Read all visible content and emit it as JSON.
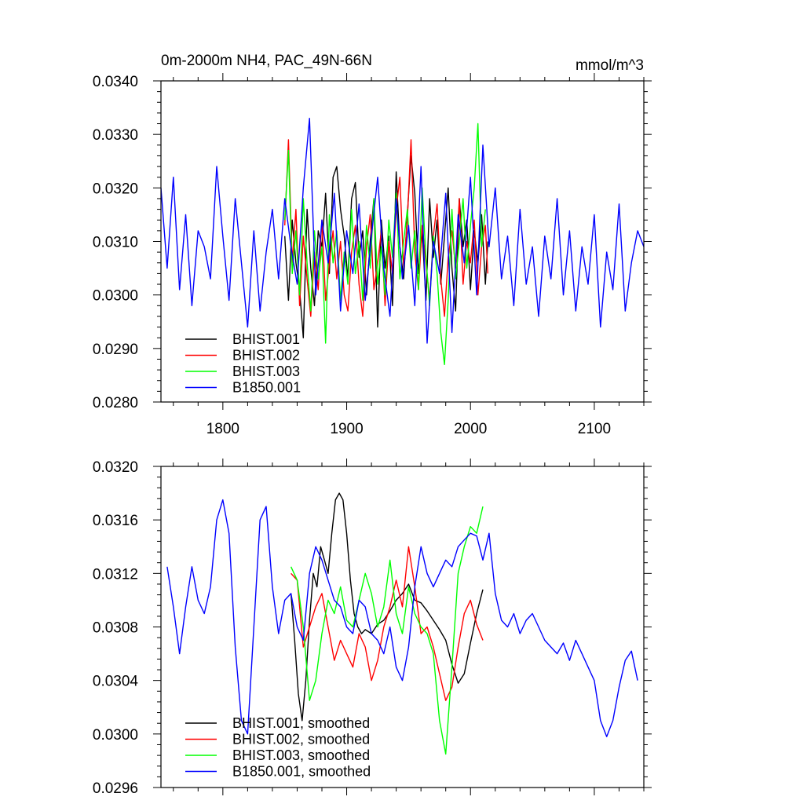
{
  "chart_data": [
    {
      "type": "line",
      "title": "0m-2000m NH4, PAC_49N-66N",
      "units": "mmol/m^3",
      "xlim": [
        1750,
        2140
      ],
      "ylim": [
        0.028,
        0.034
      ],
      "x_ticks": [
        1800,
        1900,
        2000,
        2100
      ],
      "x_tick_labels": [
        "1800",
        "1900",
        "2000",
        "2100"
      ],
      "y_ticks": [
        0.028,
        0.029,
        0.03,
        0.031,
        0.032,
        0.033,
        0.034
      ],
      "y_tick_labels": [
        "0.0280",
        "0.0290",
        "0.0300",
        "0.0310",
        "0.0320",
        "0.0330",
        "0.0340"
      ],
      "legend_position": "bottom-left",
      "series": [
        {
          "name": "BHIST.001",
          "color": "#000000",
          "x": [
            1850,
            1853,
            1856,
            1859,
            1862,
            1865,
            1868,
            1871,
            1874,
            1877,
            1880,
            1883,
            1886,
            1889,
            1892,
            1895,
            1898,
            1901,
            1904,
            1907,
            1910,
            1913,
            1916,
            1919,
            1922,
            1925,
            1928,
            1931,
            1934,
            1937,
            1940,
            1943,
            1946,
            1949,
            1952,
            1955,
            1958,
            1961,
            1964,
            1967,
            1970,
            1973,
            1976,
            1979,
            1982,
            1985,
            1988,
            1991,
            1994,
            1997,
            2000,
            2003,
            2006,
            2009,
            2012,
            2014
          ],
          "y": [
            0.0311,
            0.0299,
            0.0314,
            0.0306,
            0.0301,
            0.0292,
            0.0316,
            0.0305,
            0.0298,
            0.0312,
            0.0309,
            0.0319,
            0.0304,
            0.0322,
            0.0324,
            0.0316,
            0.0311,
            0.0303,
            0.0318,
            0.0321,
            0.0307,
            0.0312,
            0.03,
            0.031,
            0.0318,
            0.0294,
            0.0314,
            0.0305,
            0.0311,
            0.0298,
            0.0323,
            0.0309,
            0.0303,
            0.0315,
            0.0326,
            0.0319,
            0.0304,
            0.0312,
            0.0299,
            0.0318,
            0.0307,
            0.0314,
            0.0302,
            0.0311,
            0.032,
            0.0305,
            0.0297,
            0.0318,
            0.0309,
            0.0314,
            0.0301,
            0.0312,
            0.0306,
            0.0315,
            0.0302,
            0.031
          ]
        },
        {
          "name": "BHIST.002",
          "color": "#ff0000",
          "x": [
            1850,
            1853,
            1856,
            1859,
            1862,
            1865,
            1868,
            1871,
            1874,
            1877,
            1880,
            1883,
            1886,
            1889,
            1892,
            1895,
            1898,
            1901,
            1904,
            1907,
            1910,
            1913,
            1916,
            1919,
            1922,
            1925,
            1928,
            1931,
            1934,
            1937,
            1940,
            1943,
            1946,
            1949,
            1952,
            1955,
            1958,
            1961,
            1964,
            1967,
            1970,
            1973,
            1976,
            1979,
            1982,
            1985,
            1988,
            1991,
            1994,
            1997,
            2000,
            2003,
            2006,
            2009,
            2012,
            2014
          ],
          "y": [
            0.0313,
            0.0329,
            0.0306,
            0.0316,
            0.0298,
            0.0311,
            0.0303,
            0.0296,
            0.0308,
            0.0301,
            0.0314,
            0.0299,
            0.0306,
            0.0312,
            0.0303,
            0.031,
            0.03,
            0.0297,
            0.0308,
            0.0313,
            0.0302,
            0.0296,
            0.0309,
            0.0315,
            0.0301,
            0.0306,
            0.0312,
            0.0298,
            0.031,
            0.0304,
            0.0316,
            0.0322,
            0.0305,
            0.0314,
            0.0329,
            0.0308,
            0.0301,
            0.0313,
            0.0306,
            0.0299,
            0.0311,
            0.0317,
            0.0303,
            0.0296,
            0.0307,
            0.0312,
            0.0305,
            0.0318,
            0.0302,
            0.031,
            0.0306,
            0.0314,
            0.03,
            0.0309,
            0.0313,
            0.0304
          ]
        },
        {
          "name": "BHIST.003",
          "color": "#00ff00",
          "x": [
            1850,
            1853,
            1856,
            1859,
            1862,
            1865,
            1868,
            1871,
            1874,
            1877,
            1880,
            1883,
            1886,
            1889,
            1892,
            1895,
            1898,
            1901,
            1904,
            1907,
            1910,
            1913,
            1916,
            1919,
            1922,
            1925,
            1928,
            1931,
            1934,
            1937,
            1940,
            1943,
            1946,
            1949,
            1952,
            1955,
            1958,
            1961,
            1964,
            1967,
            1970,
            1973,
            1976,
            1979,
            1982,
            1985,
            1988,
            1991,
            1994,
            1997,
            2000,
            2003,
            2006,
            2009,
            2012
          ],
          "y": [
            0.0314,
            0.0327,
            0.0304,
            0.0312,
            0.03,
            0.0318,
            0.0306,
            0.0297,
            0.0312,
            0.0303,
            0.0309,
            0.0291,
            0.0315,
            0.0306,
            0.0312,
            0.0299,
            0.0308,
            0.0302,
            0.0316,
            0.0304,
            0.031,
            0.0299,
            0.0313,
            0.0305,
            0.0318,
            0.0302,
            0.0309,
            0.03,
            0.0314,
            0.0307,
            0.0319,
            0.0303,
            0.031,
            0.0316,
            0.0305,
            0.0312,
            0.0301,
            0.032,
            0.0307,
            0.0298,
            0.0311,
            0.0304,
            0.0293,
            0.0287,
            0.0299,
            0.0316,
            0.0303,
            0.031,
            0.0318,
            0.0305,
            0.0313,
            0.032,
            0.0332,
            0.0309,
            0.0316
          ]
        },
        {
          "name": "B1850.001",
          "color": "#0000ff",
          "x": [
            1750,
            1755,
            1760,
            1765,
            1770,
            1775,
            1780,
            1785,
            1790,
            1795,
            1800,
            1805,
            1810,
            1815,
            1820,
            1825,
            1830,
            1835,
            1840,
            1845,
            1850,
            1855,
            1860,
            1865,
            1870,
            1875,
            1880,
            1885,
            1890,
            1895,
            1900,
            1905,
            1910,
            1915,
            1920,
            1925,
            1930,
            1935,
            1940,
            1945,
            1950,
            1955,
            1960,
            1965,
            1970,
            1975,
            1980,
            1985,
            1990,
            1995,
            2000,
            2005,
            2010,
            2015,
            2020,
            2025,
            2030,
            2035,
            2040,
            2045,
            2050,
            2055,
            2060,
            2065,
            2070,
            2075,
            2080,
            2085,
            2090,
            2095,
            2100,
            2105,
            2110,
            2115,
            2120,
            2125,
            2130,
            2135,
            2140
          ],
          "y": [
            0.032,
            0.0305,
            0.0322,
            0.0301,
            0.0315,
            0.0298,
            0.0312,
            0.0309,
            0.0303,
            0.0324,
            0.0311,
            0.0299,
            0.0318,
            0.0306,
            0.0294,
            0.0312,
            0.0297,
            0.0308,
            0.0316,
            0.0303,
            0.0318,
            0.0309,
            0.0302,
            0.032,
            0.0333,
            0.03,
            0.0314,
            0.0306,
            0.0319,
            0.0297,
            0.0312,
            0.0304,
            0.0317,
            0.0299,
            0.0311,
            0.0322,
            0.0305,
            0.0296,
            0.0318,
            0.0303,
            0.0313,
            0.0298,
            0.0324,
            0.0291,
            0.031,
            0.0304,
            0.0319,
            0.0293,
            0.0315,
            0.0306,
            0.0322,
            0.03,
            0.0328,
            0.0309,
            0.032,
            0.0303,
            0.0311,
            0.0298,
            0.0316,
            0.0302,
            0.0309,
            0.0296,
            0.0311,
            0.0303,
            0.0318,
            0.03,
            0.0312,
            0.0297,
            0.0309,
            0.0302,
            0.0315,
            0.0294,
            0.0308,
            0.0301,
            0.0317,
            0.0297,
            0.0306,
            0.0312,
            0.0309
          ]
        }
      ]
    },
    {
      "type": "line",
      "xlim": [
        1750,
        2140
      ],
      "ylim": [
        0.0296,
        0.032
      ],
      "x_ticks": [
        1800,
        1900,
        2000,
        2100
      ],
      "y_ticks": [
        0.0296,
        0.03,
        0.0304,
        0.0308,
        0.0312,
        0.0316,
        0.032
      ],
      "y_tick_labels": [
        "0.0296",
        "0.0300",
        "0.0304",
        "0.0308",
        "0.0312",
        "0.0316",
        "0.0320"
      ],
      "legend_position": "bottom-left",
      "series": [
        {
          "name": "BHIST.001, smoothed",
          "color": "#000000",
          "x": [
            1855,
            1858,
            1861,
            1864,
            1867,
            1870,
            1873,
            1876,
            1879,
            1882,
            1885,
            1888,
            1891,
            1894,
            1897,
            1900,
            1903,
            1906,
            1909,
            1912,
            1915,
            1920,
            1925,
            1930,
            1935,
            1940,
            1945,
            1950,
            1955,
            1960,
            1965,
            1970,
            1975,
            1980,
            1985,
            1990,
            1995,
            2000,
            2005,
            2010
          ],
          "y": [
            0.03105,
            0.0307,
            0.0303,
            0.0301,
            0.0304,
            0.03085,
            0.0312,
            0.0311,
            0.0314,
            0.0313,
            0.0312,
            0.0315,
            0.03175,
            0.0318,
            0.03175,
            0.0315,
            0.03115,
            0.0309,
            0.0308,
            0.03075,
            0.03078,
            0.03075,
            0.03082,
            0.03085,
            0.03092,
            0.031,
            0.03105,
            0.03112,
            0.031,
            0.03098,
            0.03092,
            0.03085,
            0.03078,
            0.0307,
            0.03052,
            0.03038,
            0.03045,
            0.03068,
            0.0309,
            0.03108
          ]
        },
        {
          "name": "BHIST.002, smoothed",
          "color": "#ff0000",
          "x": [
            1855,
            1860,
            1865,
            1870,
            1875,
            1880,
            1885,
            1890,
            1895,
            1900,
            1905,
            1910,
            1915,
            1920,
            1925,
            1930,
            1935,
            1940,
            1945,
            1950,
            1955,
            1960,
            1965,
            1970,
            1975,
            1980,
            1985,
            1990,
            1995,
            2000,
            2005,
            2010
          ],
          "y": [
            0.0312,
            0.03115,
            0.03065,
            0.0308,
            0.03095,
            0.03105,
            0.0308,
            0.03055,
            0.0307,
            0.0306,
            0.0305,
            0.03075,
            0.03065,
            0.0304,
            0.03055,
            0.0308,
            0.03095,
            0.03115,
            0.03095,
            0.0314,
            0.0311,
            0.03075,
            0.0308,
            0.03065,
            0.03045,
            0.03025,
            0.03035,
            0.03065,
            0.0309,
            0.031,
            0.03082,
            0.0307
          ]
        },
        {
          "name": "BHIST.003, smoothed",
          "color": "#00ff00",
          "x": [
            1855,
            1860,
            1865,
            1870,
            1875,
            1880,
            1885,
            1890,
            1895,
            1900,
            1905,
            1910,
            1915,
            1920,
            1925,
            1930,
            1935,
            1940,
            1945,
            1950,
            1955,
            1960,
            1965,
            1970,
            1975,
            1980,
            1985,
            1990,
            1995,
            2000,
            2005,
            2010
          ],
          "y": [
            0.03125,
            0.03115,
            0.0308,
            0.03025,
            0.0304,
            0.03075,
            0.031,
            0.0309,
            0.0311,
            0.03085,
            0.0308,
            0.031,
            0.0312,
            0.03105,
            0.0308,
            0.03095,
            0.0313,
            0.0309,
            0.03075,
            0.0311,
            0.0309,
            0.0308,
            0.03075,
            0.0306,
            0.0301,
            0.02985,
            0.0305,
            0.0312,
            0.0314,
            0.03155,
            0.0315,
            0.0317
          ]
        },
        {
          "name": "B1850.001, smoothed",
          "color": "#0000ff",
          "x": [
            1755,
            1760,
            1765,
            1770,
            1775,
            1780,
            1785,
            1790,
            1795,
            1800,
            1805,
            1810,
            1815,
            1820,
            1825,
            1830,
            1835,
            1840,
            1845,
            1850,
            1855,
            1860,
            1865,
            1870,
            1875,
            1880,
            1885,
            1890,
            1895,
            1900,
            1905,
            1910,
            1915,
            1920,
            1925,
            1930,
            1935,
            1940,
            1945,
            1950,
            1955,
            1960,
            1965,
            1970,
            1975,
            1980,
            1985,
            1990,
            1995,
            2000,
            2005,
            2010,
            2015,
            2020,
            2025,
            2030,
            2035,
            2040,
            2045,
            2050,
            2055,
            2060,
            2065,
            2070,
            2075,
            2080,
            2085,
            2090,
            2095,
            2100,
            2105,
            2110,
            2115,
            2120,
            2125,
            2130,
            2135
          ],
          "y": [
            0.03125,
            0.03095,
            0.0306,
            0.03095,
            0.03125,
            0.031,
            0.0309,
            0.0311,
            0.0316,
            0.03175,
            0.0315,
            0.03065,
            0.0301,
            0.03,
            0.0308,
            0.0316,
            0.0317,
            0.0311,
            0.03075,
            0.031,
            0.03105,
            0.0308,
            0.0307,
            0.0312,
            0.0314,
            0.0313,
            0.03115,
            0.031,
            0.03095,
            0.0308,
            0.03075,
            0.031,
            0.03095,
            0.03075,
            0.0307,
            0.0306,
            0.0308,
            0.0305,
            0.0304,
            0.03065,
            0.0311,
            0.0314,
            0.0312,
            0.0311,
            0.0312,
            0.0313,
            0.03125,
            0.0314,
            0.03145,
            0.0315,
            0.03148,
            0.0313,
            0.0315,
            0.03105,
            0.03085,
            0.0308,
            0.0309,
            0.03075,
            0.03085,
            0.0309,
            0.0308,
            0.0307,
            0.03065,
            0.0306,
            0.03068,
            0.03055,
            0.0307,
            0.0306,
            0.0305,
            0.0304,
            0.0301,
            0.02998,
            0.0301,
            0.03035,
            0.03055,
            0.03062,
            0.0304
          ]
        }
      ]
    }
  ]
}
